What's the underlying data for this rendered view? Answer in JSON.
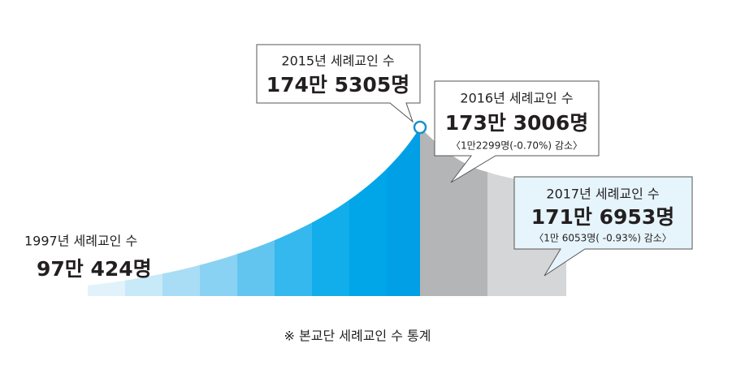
{
  "start": {
    "label": "1997년 세례교인 수",
    "value": "97만 424명"
  },
  "callouts": [
    {
      "label": "2015년 세례교인 수",
      "value": "174만 5305명"
    },
    {
      "label": "2016년 세례교인 수",
      "value": "173만 3006명",
      "change": "〈1만2299명(-0.70%) 감소〉"
    },
    {
      "label": "2017년 세례교인 수",
      "value": "171만 6953명",
      "change": "〈1만 6053명( -0.93%) 감소〉"
    }
  ],
  "footnote": "※ 본교단 세례교인 수 통계"
}
